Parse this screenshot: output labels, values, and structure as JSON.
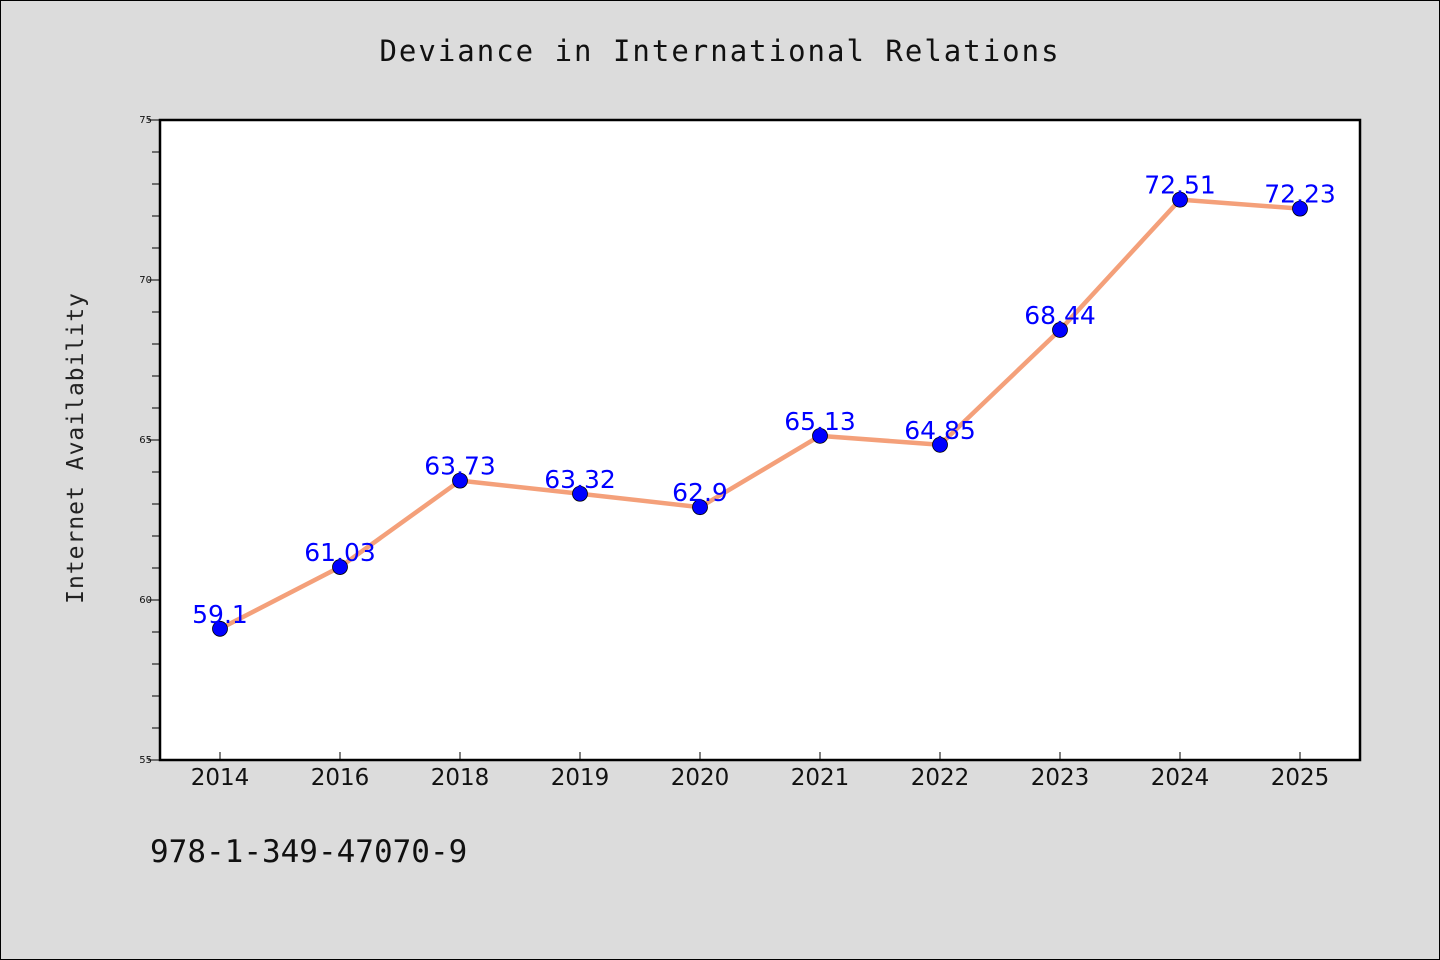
{
  "chart_data": {
    "type": "line",
    "title": "Deviance in International Relations",
    "ylabel": "Internet Availability",
    "xlabel": "",
    "categories": [
      "2014",
      "2016",
      "2018",
      "2019",
      "2020",
      "2021",
      "2022",
      "2023",
      "2024",
      "2025"
    ],
    "series": [
      {
        "values": [
          59.1,
          61.03,
          63.73,
          63.32,
          62.9,
          65.13,
          64.85,
          68.44,
          72.51,
          72.23
        ],
        "labels": [
          "59.1",
          "61.03",
          "63.73",
          "63.32",
          "62.9",
          "65.13",
          "64.85",
          "68.44",
          "72.51",
          "72.23"
        ],
        "line_color": "#f4a07a",
        "marker_color": "#0000ff"
      }
    ],
    "ylim": [
      55,
      75
    ],
    "yticks": [
      "55",
      "60",
      "65",
      "70",
      "75"
    ],
    "yticks_values": [
      55,
      60,
      65,
      70,
      75
    ],
    "grid": false,
    "legend": "none",
    "background": "#dcdcdc",
    "plot_background": "#ffffff"
  },
  "footer": {
    "code": "978-1-349-47070-9"
  }
}
